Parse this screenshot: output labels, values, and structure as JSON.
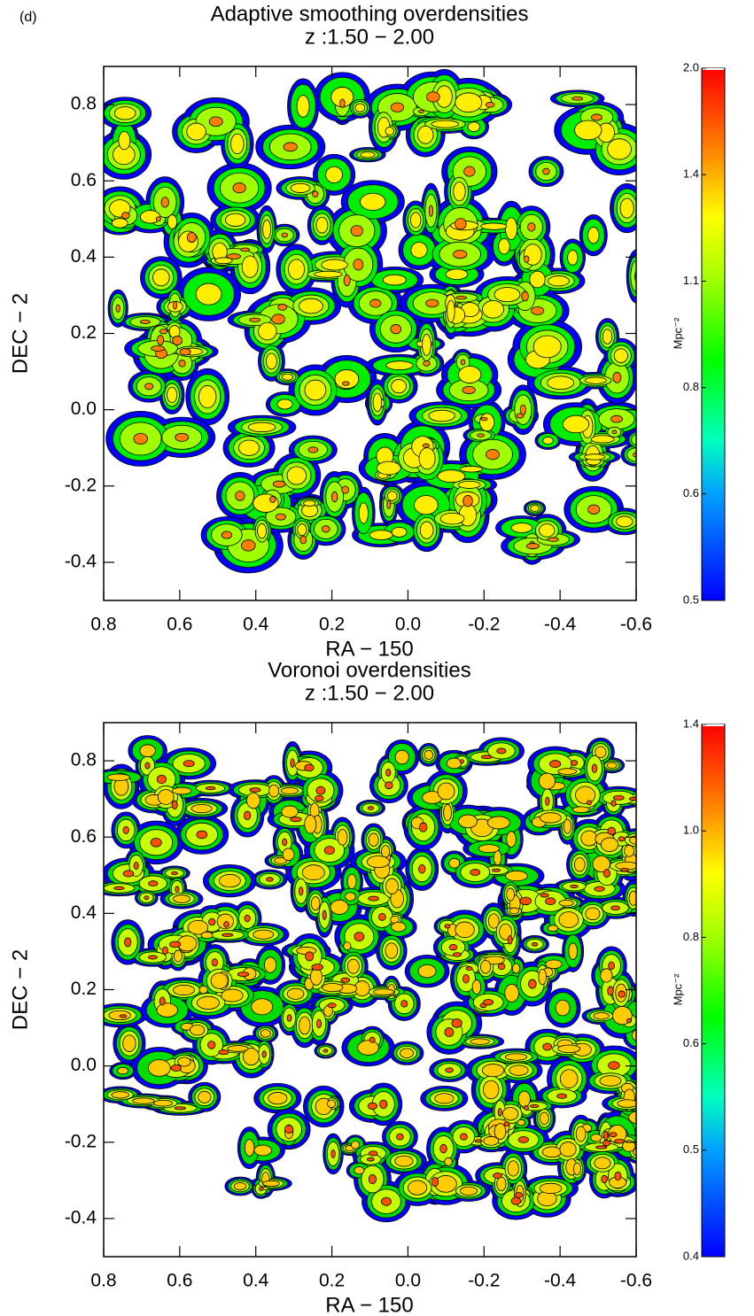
{
  "panel_label": "(d)",
  "chart_data": [
    {
      "type": "contour",
      "title": "Adaptive smoothing overdensities",
      "subtitle": "z :1.50 − 2.00",
      "x_label": "RA − 150",
      "y_label": "DEC − 2",
      "xlim": [
        0.8,
        -0.6
      ],
      "xticks": [
        0.8,
        0.6,
        0.4,
        0.2,
        {
          "value": 0,
          "label": "0.0"
        },
        -0.2,
        -0.4,
        -0.6
      ],
      "ylim": [
        -0.5,
        0.9
      ],
      "yticks": [
        -0.4,
        -0.2,
        {
          "value": 0,
          "label": "0.0"
        },
        0.2,
        0.4,
        0.6,
        0.8
      ],
      "colorbar": {
        "label": "Mpc⁻²",
        "ticks": [
          0.5,
          0.6,
          0.8,
          1.1,
          1.4,
          {
            "value": 2,
            "label": "2.0"
          }
        ]
      }
    },
    {
      "type": "contour",
      "title": "Voronoi overdensities",
      "subtitle": "z :1.50 − 2.00",
      "x_label": "RA − 150",
      "y_label": "DEC − 2",
      "xlim": [
        0.8,
        -0.6
      ],
      "xticks": [
        0.8,
        0.6,
        0.4,
        0.2,
        {
          "value": 0,
          "label": "0.0"
        },
        -0.2,
        -0.4,
        -0.6
      ],
      "ylim": [
        -0.5,
        0.9
      ],
      "yticks": [
        -0.4,
        -0.2,
        {
          "value": 0,
          "label": "0.0"
        },
        0.2,
        0.4,
        0.6,
        0.8
      ],
      "colorbar": {
        "label": "Mpc⁻²",
        "ticks": [
          0.4,
          0.5,
          0.6,
          0.8,
          {
            "value": 1,
            "label": "1.0"
          },
          1.4
        ]
      }
    }
  ]
}
